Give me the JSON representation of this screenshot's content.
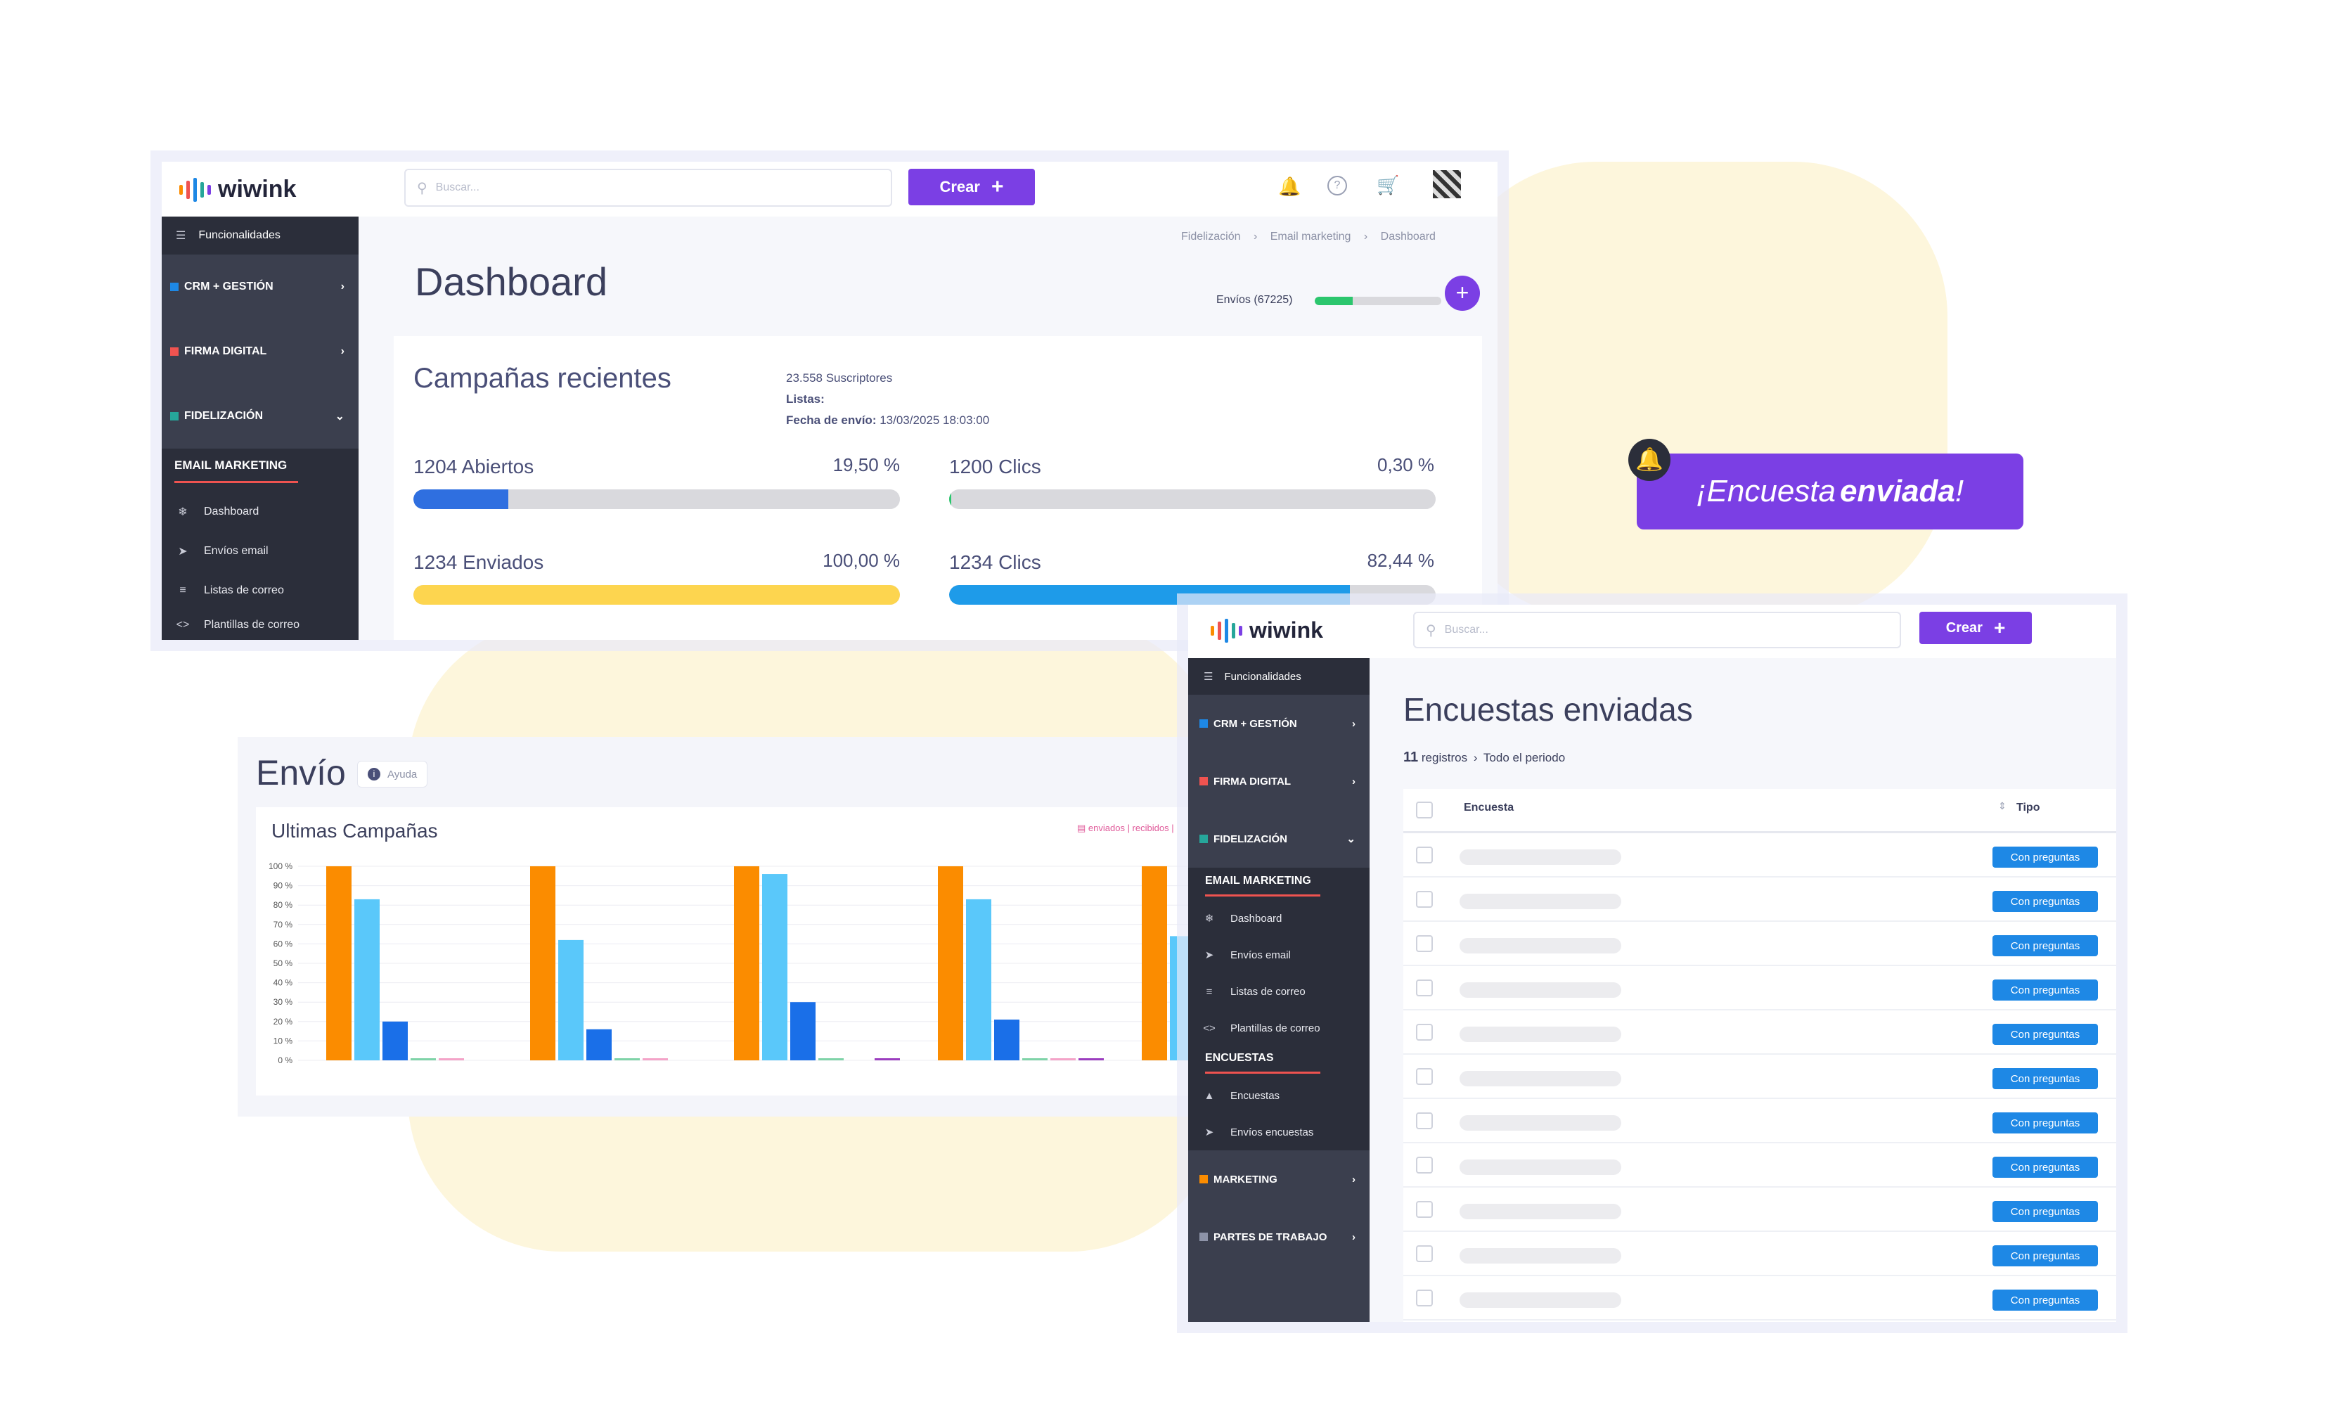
{
  "dashboard_window": {
    "logo": "wiwink",
    "search_placeholder": "Buscar...",
    "create_label": "Crear",
    "breadcrumb": [
      "Fidelización",
      "Email marketing",
      "Dashboard"
    ],
    "page_title": "Dashboard",
    "envios_label": "Envíos (67225)",
    "envios_progress": 0.3,
    "sidebar": {
      "funcionalidades": "Funcionalidades",
      "sections": [
        {
          "label": "CRM + GESTIÓN",
          "color": "#1e88e5"
        },
        {
          "label": "FIRMA DIGITAL",
          "color": "#ef5350"
        },
        {
          "label": "FIDELIZACIÓN",
          "color": "#26a69a"
        }
      ],
      "submenu_title": "EMAIL MARKETING",
      "submenu_items": [
        "Dashboard",
        "Envíos email",
        "Listas de correo",
        "Plantillas de correo"
      ]
    },
    "campaigns": {
      "title": "Campañas recientes",
      "subscribers": "23.558 Suscriptores",
      "lists_label": "Listas:",
      "send_date_label": "Fecha de envío:",
      "send_date_value": "13/03/2025 18:03:00",
      "metrics": [
        {
          "label": "1204 Abiertos",
          "value": "19,50 %",
          "fraction": 0.195,
          "color": "#2f6fe0"
        },
        {
          "label": "1200 Clics",
          "value": "0,30 %",
          "fraction": 0.003,
          "color": "#2bc66d"
        },
        {
          "label": "1234 Enviados",
          "value": "100,00 %",
          "fraction": 1.0,
          "color": "#fdd54f"
        },
        {
          "label": "1234 Clics",
          "value": "82,44 %",
          "fraction": 0.8244,
          "color": "#1e9be9"
        }
      ]
    }
  },
  "envio_panel": {
    "title": "Envío",
    "help_label": "Ayuda",
    "chart_title": "Ultimas Campañas",
    "legend_text": "enviados | recibidos |",
    "chart_data": {
      "type": "bar",
      "ylim": [
        0,
        100
      ],
      "y_ticks": [
        "0 %",
        "10 %",
        "20 %",
        "30 %",
        "40 %",
        "50 %",
        "60 %",
        "70 %",
        "80 %",
        "90 %",
        "100 %"
      ],
      "categories": [
        "",
        "",
        "",
        "",
        ""
      ],
      "series": [
        {
          "color": "#fb8c00",
          "values": [
            100,
            100,
            100,
            100,
            100
          ]
        },
        {
          "color": "#5ac8fa",
          "values": [
            83,
            62,
            96,
            83,
            64
          ]
        },
        {
          "color": "#1a6fe8",
          "values": [
            20,
            16,
            30,
            21,
            0
          ]
        },
        {
          "color": "#7fd3a8",
          "values": [
            1,
            1,
            1,
            1,
            0
          ]
        },
        {
          "color": "#f4a3c8",
          "values": [
            1,
            1,
            0,
            1,
            0
          ]
        },
        {
          "color": "#9b3dbf",
          "values": [
            0,
            0,
            1,
            1,
            0
          ]
        }
      ]
    }
  },
  "notification": {
    "text_normal": "¡Encuesta ",
    "text_bold": "enviada",
    "text_end": "!"
  },
  "surveys_window": {
    "logo": "wiwink",
    "search_placeholder": "Buscar...",
    "create_label": "Crear",
    "page_title": "Encuestas enviadas",
    "records_count": "11",
    "records_label": "registros",
    "period_label": "Todo el periodo",
    "col_survey": "Encuesta",
    "col_type": "Tipo",
    "row_badge": "Con preguntas",
    "row_count": 11,
    "sidebar": {
      "funcionalidades": "Funcionalidades",
      "sections_top": [
        {
          "label": "CRM + GESTIÓN",
          "color": "#1e88e5"
        },
        {
          "label": "FIRMA DIGITAL",
          "color": "#ef5350"
        },
        {
          "label": "FIDELIZACIÓN",
          "color": "#26a69a"
        }
      ],
      "email_title": "EMAIL MARKETING",
      "email_items": [
        "Dashboard",
        "Envíos email",
        "Listas de correo",
        "Plantillas de correo"
      ],
      "surveys_title": "ENCUESTAS",
      "survey_items": [
        "Encuestas",
        "Envíos encuestas"
      ],
      "sections_bottom": [
        {
          "label": "MARKETING",
          "color": "#fb8c00"
        },
        {
          "label": "PARTES DE TRABAJO",
          "color": "#8d93a8"
        }
      ]
    }
  }
}
